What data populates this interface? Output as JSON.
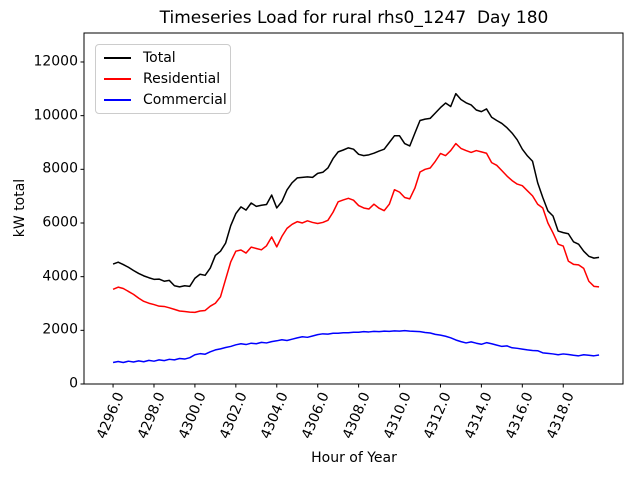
{
  "chart_data": {
    "type": "line",
    "title": "Timeseries Load for rural rhs0_1247  Day 180",
    "xlabel": "Hour of Year",
    "ylabel": "kW total",
    "grid": false,
    "legend_position": "upper left",
    "xlim": [
      4294.58,
      4320.92
    ],
    "ylim": [
      0,
      13080
    ],
    "xticks": [
      4296,
      4298,
      4300,
      4302,
      4304,
      4306,
      4308,
      4310,
      4312,
      4314,
      4316,
      4318
    ],
    "xtick_labels": [
      "4296.0",
      "4298.0",
      "4300.0",
      "4302.0",
      "4304.0",
      "4306.0",
      "4308.0",
      "4310.0",
      "4312.0",
      "4314.0",
      "4316.0",
      "4318.0"
    ],
    "yticks": [
      0,
      2000,
      4000,
      6000,
      8000,
      10000,
      12000
    ],
    "ytick_labels": [
      "0",
      "2000",
      "4000",
      "6000",
      "8000",
      "10000",
      "12000"
    ],
    "x_start": 4296.0,
    "x_step": 0.25,
    "axis_color": "#000000",
    "series": [
      {
        "name": "Total",
        "color": "#000000",
        "values": [
          4470,
          4540,
          4450,
          4350,
          4230,
          4120,
          4030,
          3960,
          3900,
          3910,
          3830,
          3860,
          3660,
          3620,
          3660,
          3640,
          3940,
          4090,
          4050,
          4320,
          4790,
          4950,
          5250,
          5900,
          6350,
          6600,
          6480,
          6745,
          6620,
          6660,
          6690,
          7040,
          6560,
          6800,
          7230,
          7500,
          7680,
          7700,
          7720,
          7700,
          7850,
          7890,
          8050,
          8400,
          8650,
          8720,
          8800,
          8750,
          8560,
          8510,
          8540,
          8600,
          8680,
          8750,
          9000,
          9250,
          9250,
          8960,
          8870,
          9350,
          9820,
          9870,
          9900,
          10100,
          10300,
          10470,
          10340,
          10820,
          10600,
          10480,
          10400,
          10210,
          10150,
          10250,
          9940,
          9820,
          9710,
          9550,
          9350,
          9100,
          8750,
          8500,
          8300,
          7500,
          6950,
          6450,
          6260,
          5700,
          5640,
          5600,
          5300,
          5210,
          4950,
          4760,
          4690,
          4720
        ]
      },
      {
        "name": "Residential",
        "color": "#ff0000",
        "values": [
          3530,
          3610,
          3560,
          3450,
          3340,
          3200,
          3080,
          3010,
          2960,
          2900,
          2890,
          2840,
          2780,
          2720,
          2700,
          2680,
          2670,
          2720,
          2740,
          2900,
          3010,
          3250,
          3900,
          4550,
          4950,
          4995,
          4880,
          5100,
          5050,
          5000,
          5150,
          5480,
          5110,
          5500,
          5800,
          5950,
          6050,
          6000,
          6080,
          6020,
          5980,
          6020,
          6100,
          6400,
          6790,
          6860,
          6920,
          6850,
          6650,
          6560,
          6520,
          6700,
          6550,
          6460,
          6700,
          7240,
          7150,
          6950,
          6900,
          7300,
          7900,
          8000,
          8050,
          8300,
          8590,
          8510,
          8700,
          8960,
          8780,
          8700,
          8630,
          8700,
          8650,
          8600,
          8250,
          8150,
          7950,
          7750,
          7580,
          7450,
          7390,
          7200,
          7010,
          6700,
          6560,
          6000,
          5630,
          5210,
          5140,
          4580,
          4460,
          4440,
          4310,
          3830,
          3640,
          3620
        ]
      },
      {
        "name": "Commercial",
        "color": "#0000ff",
        "values": [
          800,
          840,
          800,
          850,
          820,
          860,
          830,
          880,
          850,
          900,
          870,
          920,
          900,
          950,
          930,
          980,
          1090,
          1130,
          1110,
          1200,
          1270,
          1310,
          1360,
          1400,
          1460,
          1500,
          1470,
          1520,
          1500,
          1550,
          1530,
          1580,
          1610,
          1650,
          1620,
          1670,
          1720,
          1760,
          1740,
          1790,
          1840,
          1870,
          1860,
          1890,
          1890,
          1910,
          1910,
          1930,
          1930,
          1950,
          1940,
          1960,
          1950,
          1970,
          1960,
          1980,
          1970,
          1990,
          1970,
          1960,
          1950,
          1920,
          1900,
          1850,
          1820,
          1780,
          1720,
          1640,
          1580,
          1530,
          1570,
          1520,
          1480,
          1540,
          1500,
          1450,
          1400,
          1420,
          1350,
          1330,
          1300,
          1270,
          1250,
          1240,
          1160,
          1140,
          1120,
          1090,
          1120,
          1100,
          1070,
          1050,
          1090,
          1070,
          1050,
          1080
        ]
      }
    ]
  }
}
